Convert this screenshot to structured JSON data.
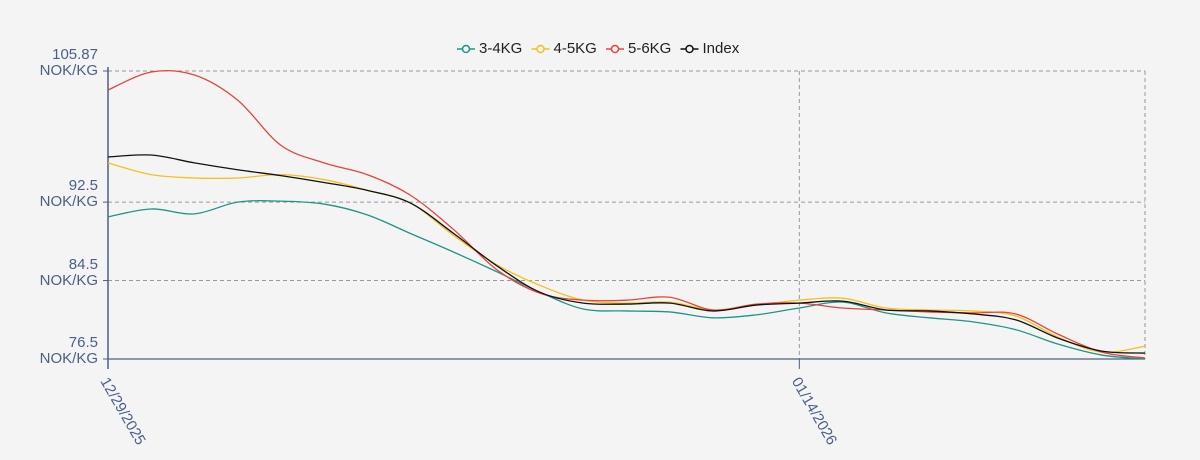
{
  "chart_data": {
    "type": "line",
    "x": [
      "12/29/2025",
      "12/30/2025",
      "12/31/2025",
      "01/01/2026",
      "01/02/2026",
      "01/03/2026",
      "01/04/2026",
      "01/05/2026",
      "01/06/2026",
      "01/07/2026",
      "01/08/2026",
      "01/09/2026",
      "01/10/2026",
      "01/11/2026",
      "01/12/2026",
      "01/13/2026",
      "01/14/2026",
      "01/15/2026",
      "01/16/2026",
      "01/17/2026",
      "01/18/2026",
      "01/19/2026",
      "01/20/2026",
      "01/21/2026",
      "01/22/2026"
    ],
    "series": [
      {
        "name": "3-4KG",
        "color": "#1f9488",
        "values": [
          91.0,
          91.8,
          91.3,
          92.5,
          92.6,
          92.3,
          91.2,
          89.3,
          87.4,
          85.4,
          83.3,
          81.6,
          81.4,
          81.3,
          80.7,
          81.0,
          81.7,
          82.3,
          81.2,
          80.7,
          80.3,
          79.5,
          78.0,
          76.9,
          76.5
        ]
      },
      {
        "name": "4-5KG",
        "color": "#f5c01d",
        "values": [
          96.5,
          95.3,
          94.96,
          94.96,
          95.3,
          94.8,
          93.7,
          92.4,
          89.1,
          86.1,
          84.0,
          82.5,
          82.2,
          82.3,
          81.5,
          82.0,
          82.5,
          82.7,
          81.7,
          81.5,
          81.4,
          80.9,
          78.7,
          77.2,
          77.8
        ]
      },
      {
        "name": "5-6KG",
        "color": "#e8443a",
        "values": [
          103.93,
          105.77,
          105.46,
          102.9,
          98.3,
          96.5,
          95.3,
          93.2,
          89.7,
          85.6,
          83.2,
          82.5,
          82.5,
          82.8,
          81.5,
          82.1,
          82.2,
          81.7,
          81.5,
          81.3,
          81.2,
          81.1,
          79.0,
          77.2,
          76.6
        ]
      },
      {
        "name": "Index",
        "color": "#111111",
        "values": [
          97.1,
          97.3,
          96.5,
          95.8,
          95.2,
          94.5,
          93.7,
          92.4,
          89.3,
          86.0,
          83.3,
          82.2,
          82.1,
          82.2,
          81.4,
          82.0,
          82.2,
          82.4,
          81.5,
          81.4,
          81.1,
          80.5,
          78.6,
          77.3,
          77.1
        ]
      }
    ],
    "xlim": [
      "12/29/2025",
      "01/22/2026"
    ],
    "xticks": [
      "12/29/2025",
      "01/14/2026"
    ],
    "ylim": [
      76.5,
      105.87
    ],
    "yticks": [
      {
        "value": 76.5,
        "label": "76.5\nNOK/KG"
      },
      {
        "value": 84.5,
        "label": "84.5\nNOK/KG"
      },
      {
        "value": 92.5,
        "label": "92.5\nNOK/KG"
      },
      {
        "value": 105.87,
        "label": "105.87\nNOK/KG"
      }
    ],
    "grid": true,
    "legend": "top"
  }
}
